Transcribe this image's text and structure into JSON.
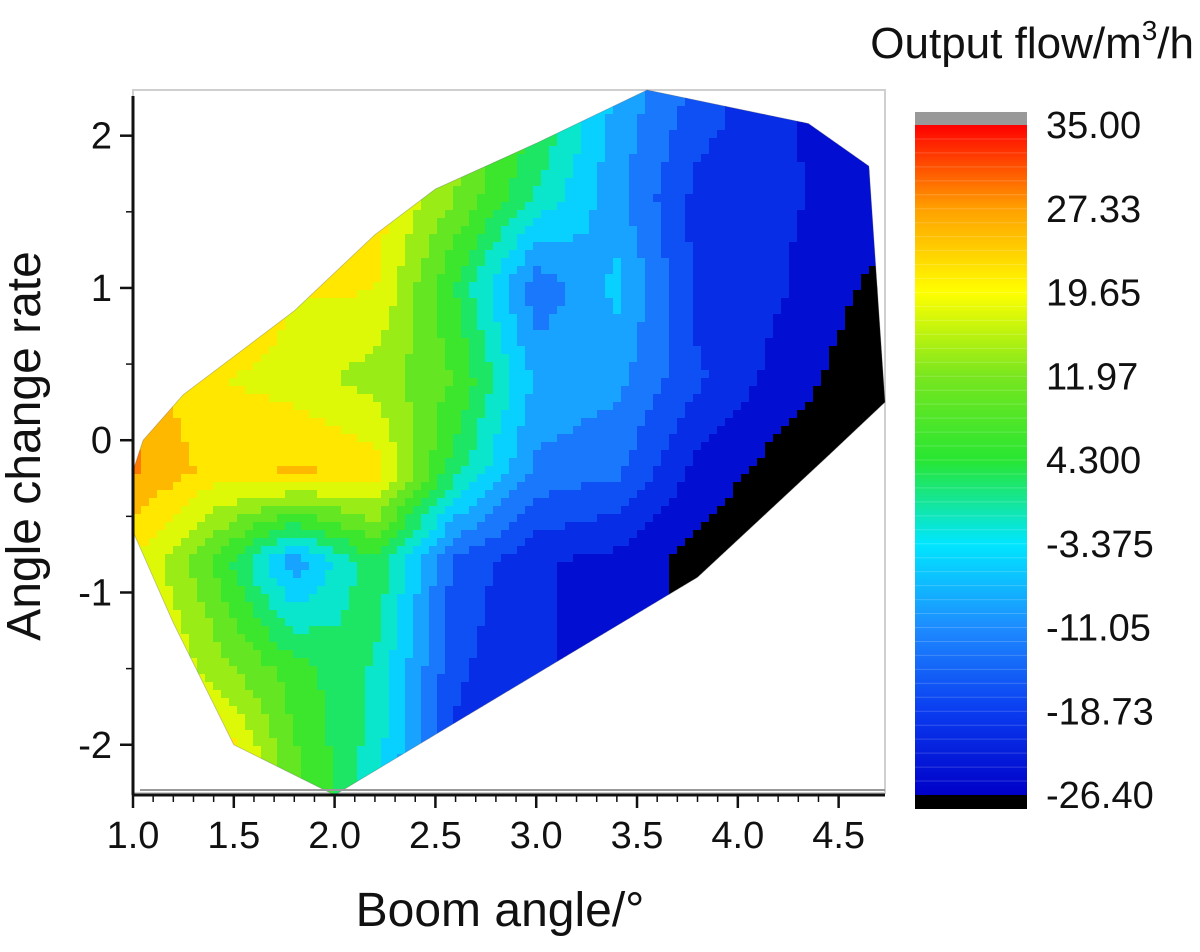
{
  "chart_data": {
    "type": "heatmap",
    "subtype": "filled-contour",
    "xlabel": "Boom angle/°",
    "ylabel": "Angle change rate",
    "colorbar": {
      "title_text": "Output flow/m",
      "title_superscript": "3",
      "title_suffix": "/h",
      "tick_labels": [
        "35.00",
        "27.33",
        "19.65",
        "11.97",
        "4.300",
        "-3.375",
        "-11.05",
        "-18.73",
        "-26.40"
      ],
      "range": [
        -26.4,
        35.0
      ],
      "overflow_color": "#999999",
      "underflow_color": "#000000",
      "colormap": [
        "#0000c8",
        "#0a3cf0",
        "#1e8cff",
        "#00e6ff",
        "#28e632",
        "#78e61e",
        "#ffff00",
        "#ffa000",
        "#ff0000"
      ]
    },
    "x_ticks": [
      "1.0",
      "1.5",
      "2.0",
      "2.5",
      "3.0",
      "3.5",
      "4.0",
      "4.5"
    ],
    "x_tick_values": [
      1.0,
      1.5,
      2.0,
      2.5,
      3.0,
      3.5,
      4.0,
      4.5
    ],
    "y_ticks": [
      "2",
      "1",
      "0",
      "-1",
      "-2"
    ],
    "y_tick_values": [
      2,
      1,
      0,
      -1,
      -2
    ],
    "xlim": [
      1.0,
      4.73
    ],
    "ylim": [
      -2.33,
      2.3
    ],
    "grid": false,
    "boundary": [
      [
        1.0,
        -0.6
      ],
      [
        1.0,
        -0.2
      ],
      [
        1.05,
        0.0
      ],
      [
        1.25,
        0.3
      ],
      [
        1.55,
        0.6
      ],
      [
        1.8,
        0.85
      ],
      [
        2.2,
        1.35
      ],
      [
        2.5,
        1.65
      ],
      [
        3.0,
        1.95
      ],
      [
        3.55,
        2.3
      ],
      [
        4.35,
        2.08
      ],
      [
        4.65,
        1.8
      ],
      [
        4.73,
        0.25
      ],
      [
        4.45,
        -0.1
      ],
      [
        3.8,
        -0.9
      ],
      [
        2.0,
        -2.33
      ],
      [
        1.5,
        -2.0
      ],
      [
        1.2,
        -1.2
      ]
    ],
    "grid_x": [
      1.0,
      1.4,
      1.8,
      2.2,
      2.6,
      3.0,
      3.4,
      3.8,
      4.2,
      4.73
    ],
    "grid_y": [
      2.3,
      1.6,
      1.0,
      0.4,
      -0.2,
      -0.8,
      -1.5,
      -2.33
    ],
    "values": [
      [
        16,
        18,
        22,
        24,
        14,
        6,
        -8,
        -16,
        -22,
        -26
      ],
      [
        20,
        24,
        26,
        22,
        12,
        0,
        -10,
        -20,
        -22,
        -24
      ],
      [
        24,
        26,
        20,
        20,
        4,
        -14,
        -6,
        -20,
        -22,
        -28
      ],
      [
        26,
        20,
        18,
        14,
        8,
        -8,
        -10,
        -18,
        -24,
        -30
      ],
      [
        28,
        22,
        24,
        22,
        2,
        -12,
        -14,
        -24,
        -28,
        -30
      ],
      [
        20,
        8,
        -10,
        4,
        -16,
        -22,
        -24,
        -28,
        -30,
        -30
      ],
      [
        24,
        14,
        6,
        0,
        -18,
        -22,
        -24,
        -26,
        -28,
        -28
      ],
      [
        28,
        30,
        10,
        -2,
        -20,
        -24,
        -26,
        -26,
        -26,
        -26
      ]
    ]
  }
}
